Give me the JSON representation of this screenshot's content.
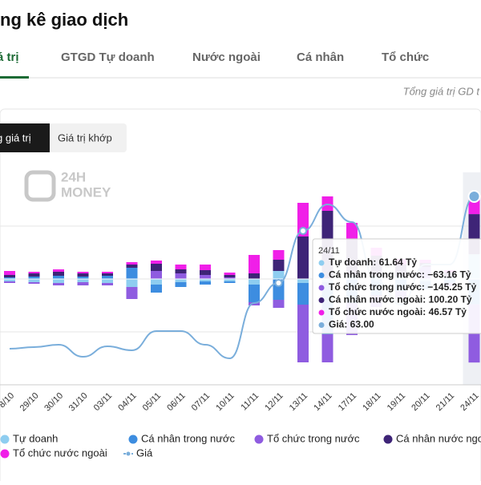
{
  "header": {
    "title": "ng kê giao dịch"
  },
  "tabs": [
    "á trị",
    "GTGD Tự doanh",
    "Nước ngoài",
    "Cá nhân",
    "Tổ chức"
  ],
  "subtitle": "Tổng giá trị GD t",
  "toggle": [
    "g giá trị",
    "Giá trị khớp"
  ],
  "watermark": [
    "24H",
    "MONEY"
  ],
  "tooltip": {
    "title": "24/11",
    "items": [
      "Tự doanh: 61.64 Tỷ",
      "Cá nhân trong nước: −63.16 Tỷ",
      "Tổ chức trong nước: −145.25 Tỷ",
      "Cá nhân nước ngoài: 100.20 Tỷ",
      "Tổ chức nước ngoài: 46.57 Tỷ",
      "Giá: 63.00"
    ]
  },
  "chart_data": {
    "type": "bar",
    "categories": [
      "8/10",
      "29/10",
      "30/10",
      "31/10",
      "03/11",
      "04/11",
      "05/11",
      "06/11",
      "07/11",
      "10/11",
      "11/11",
      "12/11",
      "13/11",
      "14/11",
      "17/11",
      "18/11",
      "19/11",
      "20/11",
      "21/11",
      "24/11"
    ],
    "ylim": [
      -264,
      266
    ],
    "yticks": [
      -132,
      0,
      132
    ],
    "grid": true,
    "y2lim": [
      51.25,
      64.5
    ],
    "series": [
      {
        "name": "Tự doanh",
        "color": "#8ecdf0",
        "values": [
          -6,
          -8,
          -10,
          -8,
          -10,
          -20,
          -14,
          -8,
          -6,
          -6,
          -14,
          20,
          -10,
          -8,
          10,
          8,
          6,
          -6,
          4,
          61.64
        ]
      },
      {
        "name": "Cá nhân trong nước",
        "color": "#3d8de0",
        "values": [
          4,
          6,
          8,
          6,
          8,
          28,
          -20,
          -12,
          -8,
          -4,
          -44,
          -52,
          -54,
          -130,
          -60,
          -40,
          -30,
          -20,
          -10,
          -63.16
        ]
      },
      {
        "name": "Tổ chức trong nước",
        "color": "#8f5ce0",
        "values": [
          -4,
          -4,
          -6,
          -8,
          -6,
          -30,
          20,
          14,
          10,
          4,
          -8,
          -20,
          -144,
          -70,
          -80,
          -30,
          -20,
          30,
          -8,
          -145.25
        ]
      },
      {
        "name": "Cá nhân nước ngoài",
        "color": "#3e2477",
        "values": [
          6,
          8,
          10,
          8,
          6,
          8,
          18,
          10,
          12,
          6,
          14,
          28,
          106,
          170,
          90,
          50,
          30,
          10,
          12,
          100.2
        ]
      },
      {
        "name": "Tổ chức nước ngoài",
        "color": "#f01fe8",
        "values": [
          10,
          4,
          6,
          4,
          4,
          6,
          8,
          12,
          14,
          6,
          46,
          24,
          84,
          36,
          40,
          20,
          14,
          8,
          6,
          46.57
        ]
      },
      {
        "name": "Giá",
        "color": "#7aaedb",
        "axis": "y2",
        "type": "line",
        "values": [
          53.5,
          53.6,
          53.75,
          53,
          53.65,
          53.4,
          54.6,
          54.6,
          53.75,
          52.9,
          56.35,
          57.6,
          60.85,
          62.5,
          61.4,
          57.75,
          56.25,
          58.75,
          58.75,
          63
        ]
      }
    ]
  }
}
